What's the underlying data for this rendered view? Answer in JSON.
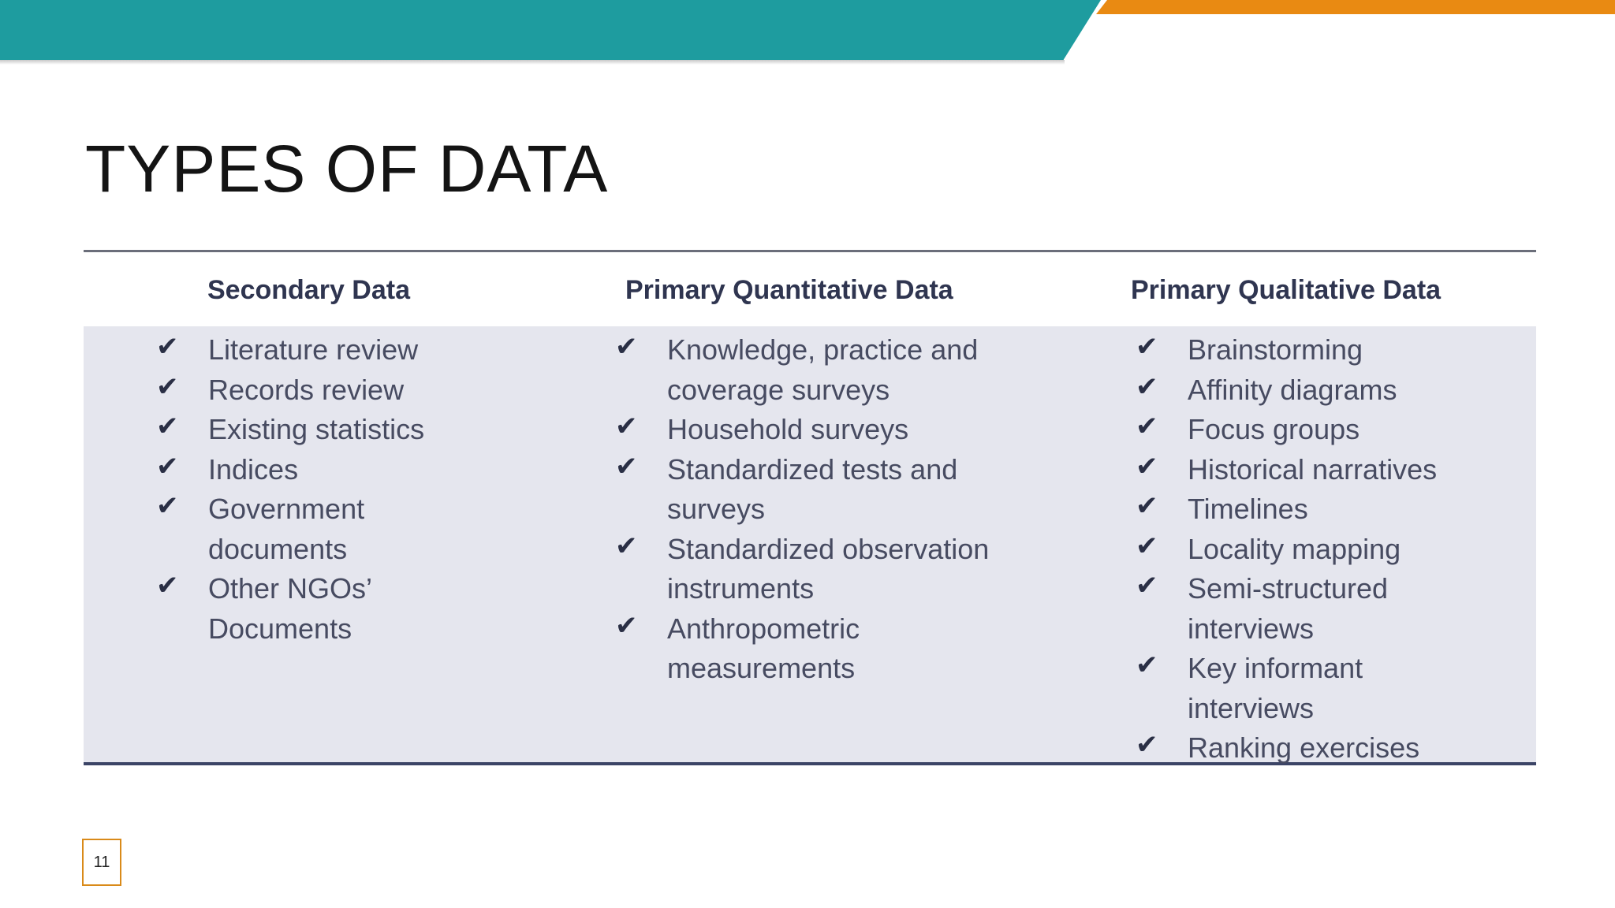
{
  "slide": {
    "title": "TYPES OF DATA",
    "page_number": "11",
    "colors": {
      "teal": "#1e9c9f",
      "orange": "#e98a12",
      "table_body": "#e5e6ee",
      "header_text": "#2f3550"
    }
  },
  "table": {
    "columns": [
      {
        "header": "Secondary Data",
        "items": [
          "Literature review",
          "Records review",
          "Existing statistics",
          "Indices",
          "Government documents",
          "Other NGOs’ Documents"
        ]
      },
      {
        "header": "Primary Quantitative Data",
        "items": [
          "Knowledge, practice and coverage surveys",
          "Household surveys",
          "Standardized tests and surveys",
          "Standardized observation instruments",
          "Anthropometric measurements"
        ]
      },
      {
        "header": "Primary Qualitative Data",
        "items": [
          "Brainstorming",
          "Affinity diagrams",
          "Focus groups",
          "Historical narratives",
          "Timelines",
          "Locality mapping",
          "Semi-structured interviews",
          "Key informant interviews",
          "Ranking exercises"
        ]
      }
    ],
    "check_icon": "checkmark-icon"
  }
}
